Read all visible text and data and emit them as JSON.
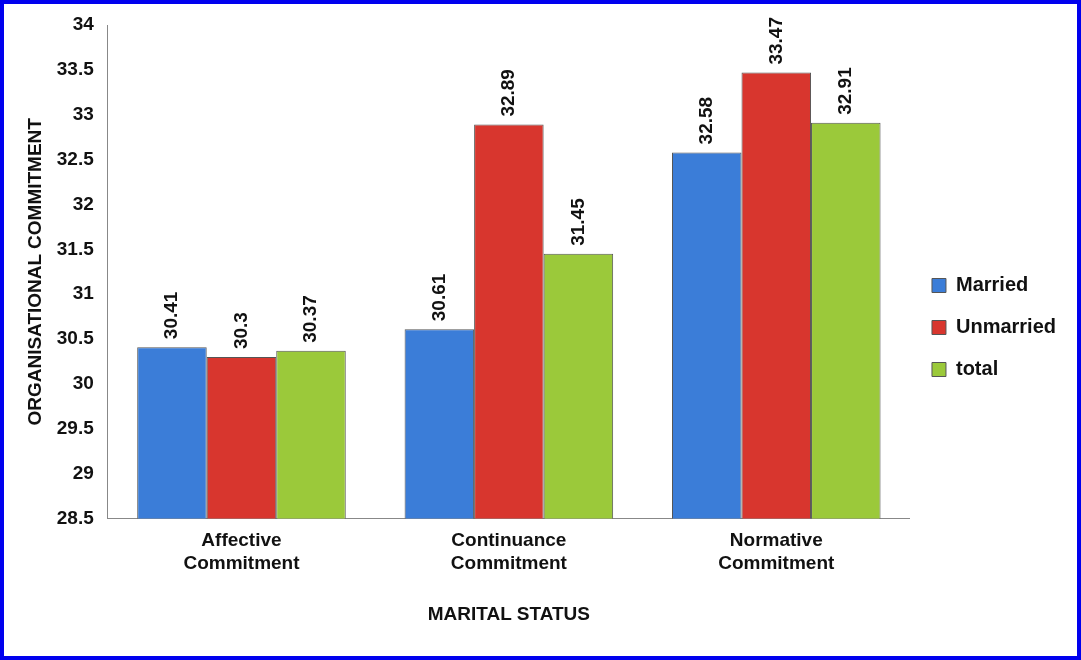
{
  "chart_data": {
    "type": "bar",
    "xlabel": "MARITAL STATUS",
    "ylabel": "ORGANISATIONAL COMMITMENT",
    "categories": [
      "Affective\nCommitment",
      "Continuance\nCommitment",
      "Normative\nCommitment"
    ],
    "series": [
      {
        "name": "Married",
        "color": "#3b7dd8",
        "values": [
          30.41,
          30.61,
          32.58
        ]
      },
      {
        "name": "Unmarried",
        "color": "#d8362e",
        "values": [
          30.3,
          32.89,
          33.47
        ]
      },
      {
        "name": "total",
        "color": "#9bc93a",
        "values": [
          30.37,
          31.45,
          32.91
        ]
      }
    ],
    "ylim": [
      28.5,
      34
    ],
    "yticks": [
      28.5,
      29,
      29.5,
      30,
      30.5,
      31,
      31.5,
      32,
      32.5,
      33,
      33.5,
      34
    ],
    "grid": false,
    "legend": "right",
    "data_labels": true
  }
}
